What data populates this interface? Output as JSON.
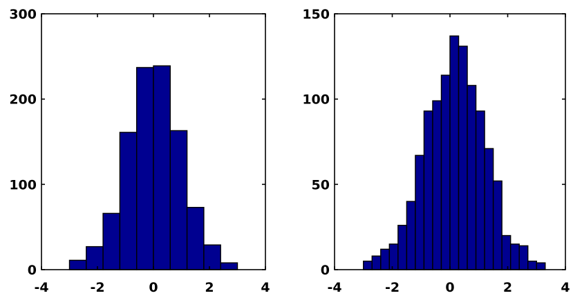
{
  "chart_data": [
    {
      "type": "bar",
      "title": "",
      "xlabel": "",
      "ylabel": "",
      "xlim": [
        -4,
        4
      ],
      "ylim": [
        0,
        300
      ],
      "xticks": [
        -4,
        -2,
        0,
        2,
        4
      ],
      "yticks": [
        0,
        100,
        200,
        300
      ],
      "xtick_labels": [
        "-4",
        "-2",
        "0",
        "2",
        "4"
      ],
      "ytick_labels": [
        "0",
        "100",
        "200",
        "300"
      ],
      "bar_color": "#000090",
      "bins": [
        {
          "x0": -3.0,
          "x1": -2.4,
          "value": 11
        },
        {
          "x0": -2.4,
          "x1": -1.8,
          "value": 27
        },
        {
          "x0": -1.8,
          "x1": -1.2,
          "value": 66
        },
        {
          "x0": -1.2,
          "x1": -0.6,
          "value": 161
        },
        {
          "x0": -0.6,
          "x1": 0.0,
          "value": 237
        },
        {
          "x0": 0.0,
          "x1": 0.6,
          "value": 239
        },
        {
          "x0": 0.6,
          "x1": 1.2,
          "value": 163
        },
        {
          "x0": 1.2,
          "x1": 1.8,
          "value": 73
        },
        {
          "x0": 1.8,
          "x1": 2.4,
          "value": 29
        },
        {
          "x0": 2.4,
          "x1": 3.0,
          "value": 8
        }
      ]
    },
    {
      "type": "bar",
      "title": "",
      "xlabel": "",
      "ylabel": "",
      "xlim": [
        -4,
        4
      ],
      "ylim": [
        0,
        150
      ],
      "xticks": [
        -4,
        -2,
        0,
        2,
        4
      ],
      "yticks": [
        0,
        50,
        100,
        150
      ],
      "xtick_labels": [
        "-4",
        "-2",
        "0",
        "2",
        "4"
      ],
      "ytick_labels": [
        "0",
        "50",
        "100",
        "150"
      ],
      "bar_color": "#000090",
      "bins": [
        {
          "x0": -3.0,
          "x1": -2.7,
          "value": 5
        },
        {
          "x0": -2.7,
          "x1": -2.4,
          "value": 8
        },
        {
          "x0": -2.4,
          "x1": -2.1,
          "value": 12
        },
        {
          "x0": -2.1,
          "x1": -1.8,
          "value": 15
        },
        {
          "x0": -1.8,
          "x1": -1.5,
          "value": 26
        },
        {
          "x0": -1.5,
          "x1": -1.2,
          "value": 40
        },
        {
          "x0": -1.2,
          "x1": -0.9,
          "value": 67
        },
        {
          "x0": -0.9,
          "x1": -0.6,
          "value": 93
        },
        {
          "x0": -0.6,
          "x1": -0.3,
          "value": 99
        },
        {
          "x0": -0.3,
          "x1": 0.0,
          "value": 114
        },
        {
          "x0": 0.0,
          "x1": 0.3,
          "value": 137
        },
        {
          "x0": 0.3,
          "x1": 0.6,
          "value": 131
        },
        {
          "x0": 0.6,
          "x1": 0.9,
          "value": 108
        },
        {
          "x0": 0.9,
          "x1": 1.2,
          "value": 93
        },
        {
          "x0": 1.2,
          "x1": 1.5,
          "value": 71
        },
        {
          "x0": 1.5,
          "x1": 1.8,
          "value": 52
        },
        {
          "x0": 1.8,
          "x1": 2.1,
          "value": 20
        },
        {
          "x0": 2.1,
          "x1": 2.4,
          "value": 15
        },
        {
          "x0": 2.4,
          "x1": 2.7,
          "value": 14
        },
        {
          "x0": 2.7,
          "x1": 3.0,
          "value": 5
        },
        {
          "x0": 3.0,
          "x1": 3.3,
          "value": 4
        }
      ]
    }
  ]
}
